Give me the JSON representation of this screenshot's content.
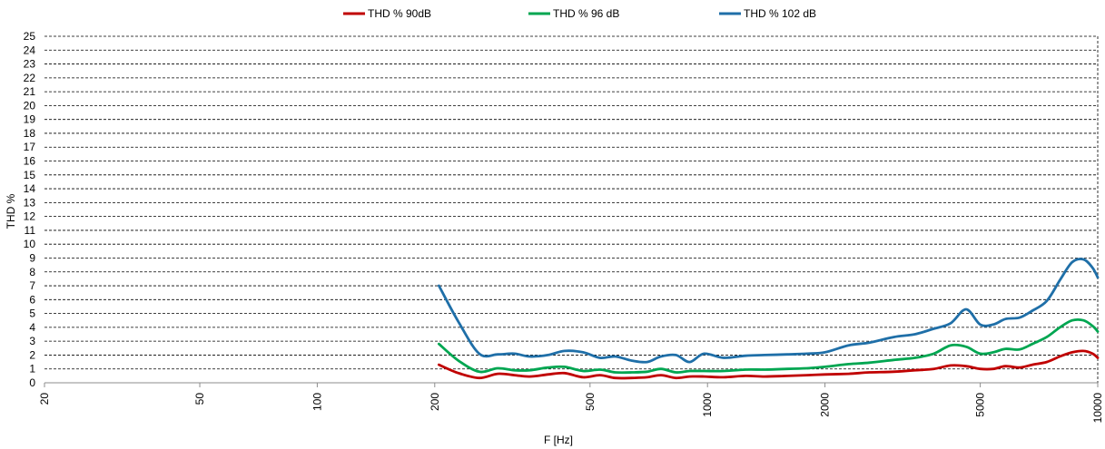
{
  "chart_data": {
    "type": "line",
    "title": "",
    "xlabel": "F [Hz]",
    "ylabel": "THD %",
    "x_scale": "log",
    "xlim": [
      20,
      10000
    ],
    "ylim": [
      0,
      25
    ],
    "grid": true,
    "legend_position": "top",
    "x_ticks": [
      20,
      50,
      100,
      200,
      500,
      1000,
      2000,
      5000,
      10000
    ],
    "x_tick_labels": [
      "20",
      "50",
      "100",
      "200",
      "500",
      "1000",
      "2000",
      "5000",
      "10000"
    ],
    "y_ticks": [
      0,
      1,
      2,
      3,
      4,
      5,
      6,
      7,
      8,
      9,
      10,
      11,
      12,
      13,
      14,
      15,
      16,
      17,
      18,
      19,
      20,
      21,
      22,
      23,
      24,
      25
    ],
    "y_tick_labels": [
      "0",
      "1",
      "2",
      "3",
      "4",
      "5",
      "6",
      "7",
      "8",
      "9",
      "10",
      "11",
      "12",
      "13",
      "14",
      "15",
      "16",
      "17",
      "18",
      "19",
      "20",
      "21",
      "22",
      "23",
      "24",
      "25"
    ],
    "series": [
      {
        "name": "THD % 90dB",
        "color": "#C00000",
        "x": [
          205,
          230,
          260,
          290,
          320,
          350,
          390,
          430,
          480,
          530,
          580,
          640,
          700,
          760,
          830,
          900,
          980,
          1100,
          1250,
          1400,
          1600,
          1800,
          2000,
          2300,
          2600,
          3000,
          3400,
          3800,
          4200,
          4600,
          5000,
          5400,
          5800,
          6300,
          6800,
          7400,
          8000,
          8600,
          9200,
          9700,
          10000
        ],
        "y": [
          1.3,
          0.7,
          0.35,
          0.65,
          0.55,
          0.45,
          0.6,
          0.7,
          0.4,
          0.55,
          0.35,
          0.35,
          0.4,
          0.55,
          0.35,
          0.45,
          0.45,
          0.4,
          0.5,
          0.45,
          0.5,
          0.55,
          0.6,
          0.65,
          0.75,
          0.8,
          0.9,
          1.0,
          1.25,
          1.2,
          1.0,
          1.0,
          1.2,
          1.1,
          1.3,
          1.5,
          1.9,
          2.2,
          2.3,
          2.1,
          1.8
        ]
      },
      {
        "name": "THD % 96 dB",
        "color": "#00A651",
        "x": [
          205,
          230,
          260,
          290,
          320,
          350,
          390,
          430,
          480,
          530,
          580,
          640,
          700,
          760,
          830,
          900,
          980,
          1100,
          1250,
          1400,
          1600,
          1800,
          2000,
          2300,
          2600,
          3000,
          3400,
          3800,
          4200,
          4600,
          5000,
          5400,
          5800,
          6300,
          6800,
          7400,
          8000,
          8600,
          9200,
          9700,
          10000
        ],
        "y": [
          2.8,
          1.6,
          0.8,
          1.05,
          0.9,
          0.9,
          1.1,
          1.15,
          0.85,
          0.95,
          0.75,
          0.75,
          0.8,
          1.0,
          0.75,
          0.85,
          0.85,
          0.85,
          0.95,
          0.95,
          1.0,
          1.05,
          1.15,
          1.35,
          1.45,
          1.65,
          1.8,
          2.1,
          2.7,
          2.6,
          2.1,
          2.2,
          2.45,
          2.4,
          2.8,
          3.3,
          4.0,
          4.5,
          4.5,
          4.1,
          3.7
        ]
      },
      {
        "name": "THD % 102 dB",
        "color": "#1F6FA8",
        "x": [
          205,
          230,
          260,
          290,
          320,
          350,
          390,
          430,
          480,
          530,
          580,
          640,
          700,
          760,
          830,
          900,
          980,
          1100,
          1250,
          1400,
          1600,
          1800,
          2000,
          2300,
          2600,
          3000,
          3400,
          3800,
          4200,
          4600,
          5000,
          5400,
          5800,
          6300,
          6800,
          7400,
          8000,
          8600,
          9200,
          9700,
          10000
        ],
        "y": [
          7.0,
          4.4,
          2.1,
          2.05,
          2.1,
          1.9,
          2.0,
          2.3,
          2.2,
          1.8,
          1.9,
          1.6,
          1.5,
          1.9,
          2.0,
          1.5,
          2.1,
          1.8,
          1.95,
          2.0,
          2.05,
          2.1,
          2.2,
          2.7,
          2.9,
          3.3,
          3.5,
          3.9,
          4.3,
          5.3,
          4.2,
          4.2,
          4.6,
          4.7,
          5.2,
          5.9,
          7.4,
          8.7,
          8.9,
          8.3,
          7.6
        ]
      }
    ]
  }
}
